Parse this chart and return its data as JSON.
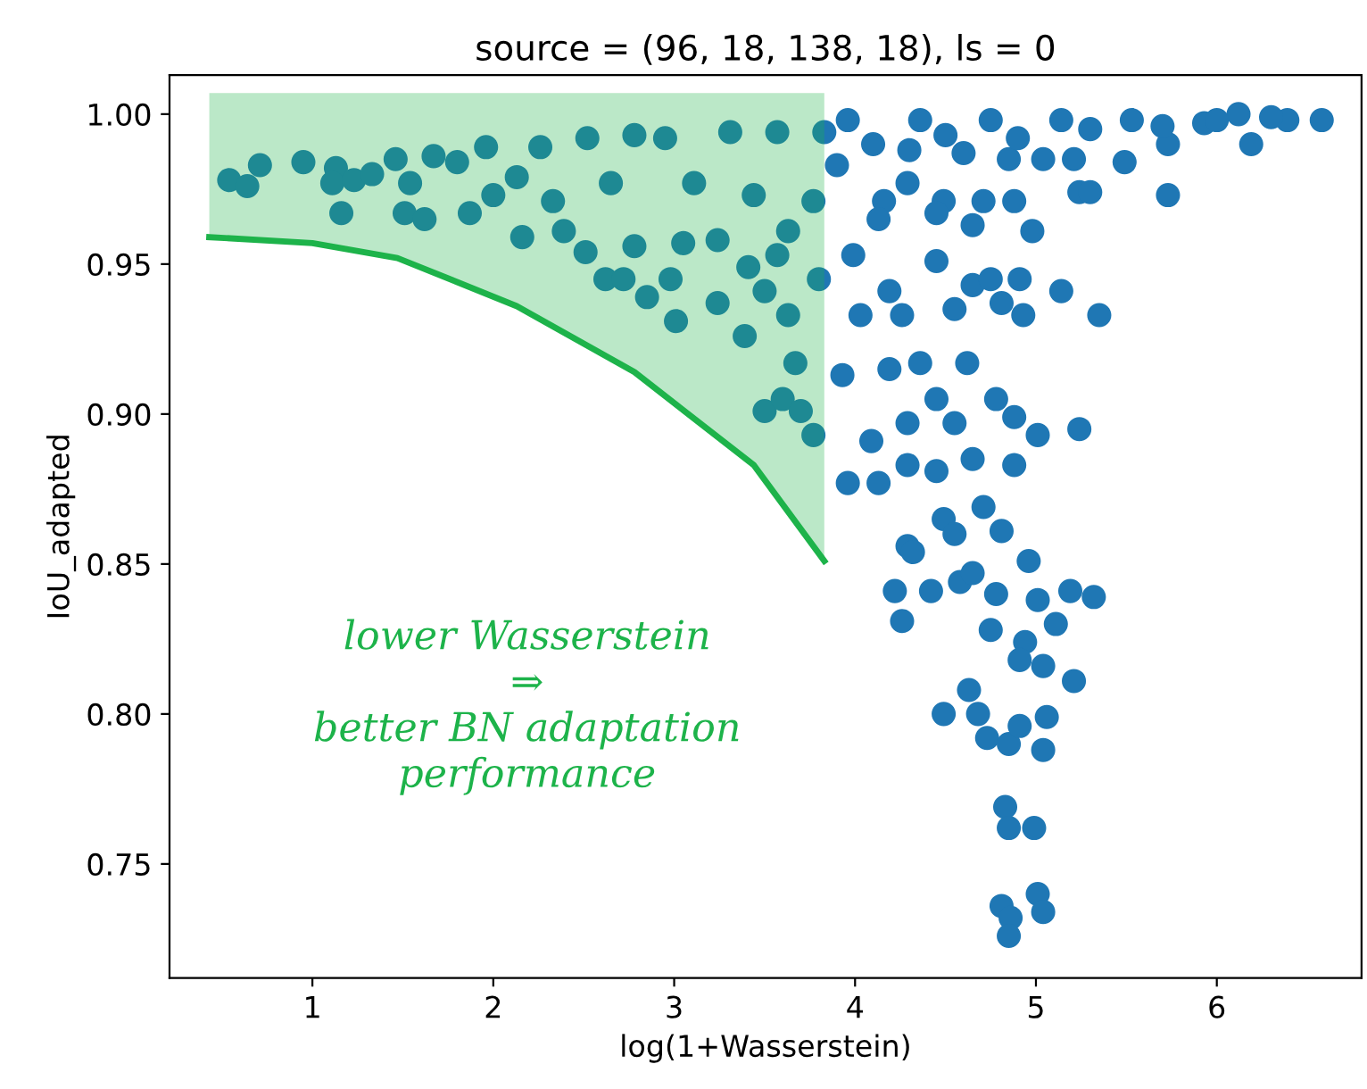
{
  "chart_data": {
    "type": "scatter",
    "title": "source = (96, 18, 138, 18), ls = 0",
    "xlabel": "log(1+Wasserstein)",
    "ylabel": "IoU_adapted",
    "annotations": [
      "lower Wasserstein\n⇒\nbetter BN adaptation\nperformance"
    ],
    "xlim": [
      0.21,
      6.8
    ],
    "ylim": [
      0.712,
      1.013
    ],
    "xticks": [
      1,
      2,
      3,
      4,
      5,
      6
    ],
    "yticks": [
      0.75,
      {
        "value": 0.8,
        "label": "0.80"
      },
      0.85,
      {
        "value": 0.9,
        "label": "0.90"
      },
      0.95,
      {
        "value": 1.0,
        "label": "1.00"
      }
    ],
    "grid": false,
    "legend": false,
    "series": [
      {
        "type": "scatter",
        "color": "#1f77b4",
        "marker": "circle",
        "x": [
          0.54,
          0.64,
          0.71,
          0.95,
          1.13,
          1.11,
          1.16,
          1.23,
          1.33,
          1.46,
          1.51,
          1.62,
          1.54,
          1.67,
          1.8,
          1.87,
          1.96,
          2.0,
          2.13,
          2.16,
          2.26,
          2.33,
          2.39,
          2.52,
          2.51,
          2.62,
          2.72,
          2.65,
          2.78,
          2.78,
          2.85,
          2.95,
          2.98,
          3.01,
          3.05,
          3.11,
          3.24,
          3.24,
          3.31,
          3.39,
          3.41,
          3.44,
          3.5,
          3.57,
          3.57,
          3.6,
          3.63,
          3.67,
          3.7,
          3.77,
          3.77,
          3.8,
          3.83,
          3.63,
          3.5,
          3.96,
          3.9,
          4.16,
          4.13,
          4.29,
          4.36,
          4.49,
          4.45,
          4.65,
          4.71,
          4.85,
          4.88,
          4.98,
          4.75,
          5.04,
          5.21,
          5.24,
          5.3,
          5.14,
          5.49,
          5.53,
          5.73,
          5.73,
          5.93,
          6.19,
          6.12,
          6.39,
          6.58,
          4.1,
          4.5,
          4.9,
          5.3,
          5.7,
          6.0,
          6.3,
          4.3,
          4.6,
          3.99,
          4.03,
          4.19,
          4.26,
          4.45,
          4.55,
          4.65,
          4.75,
          4.81,
          4.91,
          4.93,
          5.14,
          5.35,
          3.93,
          4.19,
          4.36,
          4.62,
          4.45,
          4.29,
          4.55,
          4.78,
          4.88,
          5.24,
          5.01,
          4.09,
          3.96,
          4.13,
          4.29,
          4.45,
          4.65,
          4.88,
          4.49,
          4.71,
          4.81,
          4.29,
          4.55,
          4.32,
          4.22,
          4.42,
          4.26,
          4.58,
          4.65,
          4.78,
          4.75,
          4.96,
          5.01,
          5.19,
          5.32,
          5.11,
          4.94,
          4.91,
          5.04,
          5.21,
          4.63,
          4.49,
          4.68,
          4.73,
          4.85,
          4.91,
          5.06,
          5.04,
          4.83,
          4.85,
          4.99,
          5.01,
          5.04,
          4.81,
          4.86,
          4.85
        ],
        "values": [
          0.978,
          0.976,
          0.983,
          0.984,
          0.982,
          0.977,
          0.967,
          0.978,
          0.98,
          0.985,
          0.967,
          0.965,
          0.977,
          0.986,
          0.984,
          0.967,
          0.989,
          0.973,
          0.979,
          0.959,
          0.989,
          0.971,
          0.961,
          0.992,
          0.954,
          0.945,
          0.945,
          0.977,
          0.993,
          0.956,
          0.939,
          0.992,
          0.945,
          0.931,
          0.957,
          0.977,
          0.958,
          0.937,
          0.994,
          0.926,
          0.949,
          0.973,
          0.901,
          0.994,
          0.953,
          0.905,
          0.933,
          0.917,
          0.901,
          0.893,
          0.971,
          0.945,
          0.994,
          0.961,
          0.941,
          0.998,
          0.983,
          0.971,
          0.965,
          0.977,
          0.998,
          0.971,
          0.967,
          0.963,
          0.971,
          0.985,
          0.971,
          0.961,
          0.998,
          0.985,
          0.985,
          0.974,
          0.974,
          0.998,
          0.984,
          0.998,
          0.973,
          0.99,
          0.997,
          0.99,
          1.0,
          0.998,
          0.998,
          0.99,
          0.993,
          0.992,
          0.995,
          0.996,
          0.998,
          0.999,
          0.988,
          0.987,
          0.953,
          0.933,
          0.941,
          0.933,
          0.951,
          0.935,
          0.943,
          0.945,
          0.937,
          0.945,
          0.933,
          0.941,
          0.933,
          0.913,
          0.915,
          0.917,
          0.917,
          0.905,
          0.897,
          0.897,
          0.905,
          0.899,
          0.895,
          0.893,
          0.891,
          0.877,
          0.877,
          0.883,
          0.881,
          0.885,
          0.883,
          0.865,
          0.869,
          0.861,
          0.856,
          0.86,
          0.854,
          0.841,
          0.841,
          0.831,
          0.844,
          0.847,
          0.84,
          0.828,
          0.851,
          0.838,
          0.841,
          0.839,
          0.83,
          0.824,
          0.818,
          0.816,
          0.811,
          0.808,
          0.8,
          0.8,
          0.792,
          0.79,
          0.796,
          0.799,
          0.788,
          0.769,
          0.762,
          0.762,
          0.74,
          0.734,
          0.736,
          0.732,
          0.726
        ]
      },
      {
        "type": "line",
        "color": "#1db34a",
        "marker": "none",
        "line_style": "solid",
        "x": [
          0.43,
          1.0,
          1.47,
          2.13,
          2.78,
          3.44,
          3.83
        ],
        "values": [
          0.959,
          0.957,
          0.952,
          0.936,
          0.914,
          0.883,
          0.851
        ],
        "lower": [
          0.959,
          0.957,
          0.952,
          0.936,
          0.914,
          0.883,
          0.851
        ],
        "upper": [
          1.007,
          1.007,
          1.007,
          1.007,
          1.007,
          1.007,
          1.007
        ]
      }
    ]
  }
}
